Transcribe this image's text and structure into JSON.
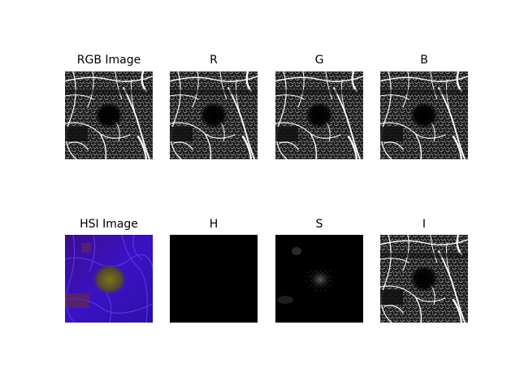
{
  "panels": {
    "rgb": {
      "title": "RGB Image"
    },
    "r": {
      "title": "R"
    },
    "g": {
      "title": "G"
    },
    "b": {
      "title": "B"
    },
    "hsi": {
      "title": "HSI Image"
    },
    "h": {
      "title": "H"
    },
    "s": {
      "title": "S"
    },
    "i": {
      "title": "I"
    }
  },
  "colors": {
    "background": "#ffffff",
    "vessel": "#ffffff",
    "dark": "#000000",
    "hsi_base": "#3a0fb0",
    "hsi_fovea": "#6b6a10"
  }
}
